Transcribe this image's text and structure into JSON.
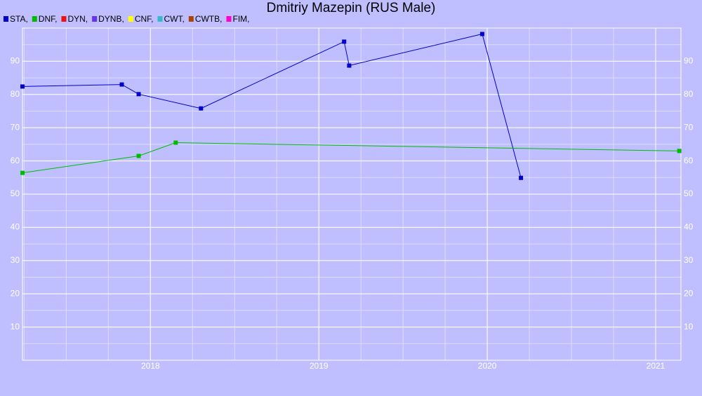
{
  "chart_data": {
    "type": "line",
    "title": "Dmitriy Mazepin (RUS Male)",
    "xlim": [
      2017.24,
      2021.15
    ],
    "xticks": [
      2018,
      2019,
      2020,
      2021
    ],
    "ylim": [
      0,
      100
    ],
    "yticks": [
      10,
      20,
      30,
      40,
      50,
      60,
      70,
      80,
      90
    ],
    "grid": true,
    "series": [
      {
        "name": "STA,",
        "color": "#0000cc",
        "x": [
          2017.24,
          2017.83,
          2017.93,
          2018.3,
          2019.15,
          2019.18,
          2019.97,
          2020.2
        ],
        "values": [
          82.4,
          83.0,
          80.1,
          75.8,
          95.9,
          88.7,
          98.2,
          54.9
        ]
      },
      {
        "name": "DNF,",
        "color": "#00bb00",
        "x": [
          2017.24,
          2017.93,
          2018.15,
          2021.14
        ],
        "values": [
          56.4,
          61.5,
          65.5,
          63.0
        ]
      },
      {
        "name": "DYN,",
        "color": "#ee1111",
        "x": [],
        "values": []
      },
      {
        "name": "DYNB,",
        "color": "#6633ee",
        "x": [],
        "values": []
      },
      {
        "name": "CNF,",
        "color": "#ffff00",
        "x": [],
        "values": []
      },
      {
        "name": "CWT,",
        "color": "#33bbcc",
        "x": [],
        "values": []
      },
      {
        "name": "CWTB,",
        "color": "#aa4400",
        "x": [],
        "values": []
      },
      {
        "name": "FIM,",
        "color": "#ff00cc",
        "x": [],
        "values": []
      }
    ]
  }
}
